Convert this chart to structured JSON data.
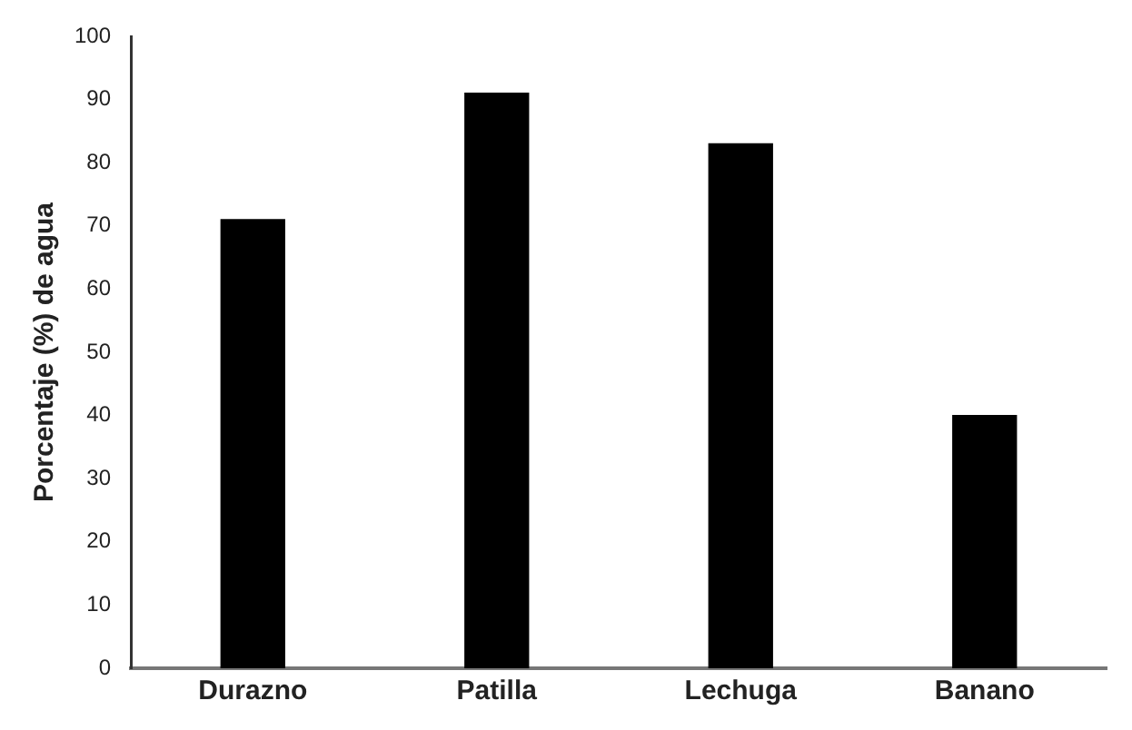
{
  "chart_data": {
    "type": "bar",
    "ylabel": "Porcentaje (%) de agua",
    "categories": [
      "Durazno",
      "Patilla",
      "Lechuga",
      "Banano"
    ],
    "values": [
      71,
      91,
      83,
      40
    ],
    "color": "#000000",
    "ylim": [
      0,
      100
    ],
    "yticks": [
      0,
      10,
      20,
      30,
      40,
      50,
      60,
      70,
      80,
      90,
      100
    ],
    "grid": false,
    "legend": false
  }
}
